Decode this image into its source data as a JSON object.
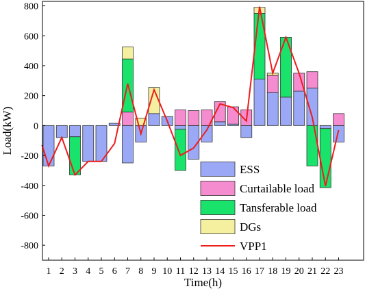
{
  "chart_data": {
    "type": "bar",
    "title": "",
    "xlabel": "Time(h)",
    "ylabel": "Load(kW)",
    "categories": [
      "1",
      "2",
      "3",
      "4",
      "5",
      "6",
      "7",
      "8",
      "9",
      "10",
      "11",
      "12",
      "13",
      "14",
      "15",
      "16",
      "17",
      "18",
      "19",
      "20",
      "21",
      "22",
      "23"
    ],
    "ylim": [
      -900,
      830
    ],
    "yticks": [
      -800,
      -600,
      -400,
      -200,
      0,
      200,
      400,
      600,
      800
    ],
    "grid": false,
    "legend_position": "bottom-right",
    "stacked": true,
    "series": [
      {
        "name": "ESS",
        "color": "#9aa8f5",
        "values": [
          -270,
          -80,
          -75,
          -240,
          -240,
          15,
          -250,
          -110,
          80,
          60,
          -25,
          -225,
          -110,
          25,
          10,
          -80,
          310,
          220,
          190,
          230,
          250,
          -20,
          -110
        ]
      },
      {
        "name": "Curtailable load",
        "color": "#f58ccf",
        "values": [
          0,
          0,
          0,
          0,
          0,
          0,
          90,
          0,
          0,
          0,
          105,
          100,
          105,
          135,
          115,
          105,
          0,
          115,
          0,
          120,
          110,
          0,
          80
        ]
      },
      {
        "name": "Tansferable load",
        "color": "#19e36b",
        "values": [
          0,
          0,
          -255,
          0,
          0,
          0,
          355,
          0,
          0,
          0,
          -275,
          0,
          0,
          0,
          0,
          0,
          440,
          0,
          400,
          0,
          -270,
          -395,
          0
        ]
      },
      {
        "name": "DGs",
        "color": "#f5f0a0",
        "values": [
          0,
          0,
          0,
          0,
          0,
          0,
          80,
          50,
          175,
          0,
          0,
          0,
          0,
          0,
          0,
          0,
          40,
          15,
          0,
          0,
          0,
          0,
          0
        ]
      }
    ],
    "line_series": {
      "name": "VPP1",
      "color": "#ee1c1c",
      "values": [
        -130,
        -270,
        -80,
        -330,
        -240,
        -240,
        -120,
        280,
        -55,
        240,
        30,
        -200,
        -150,
        -30,
        145,
        120,
        30,
        795,
        350,
        590,
        350,
        55,
        -405,
        -30
      ],
      "x": [
        0.5,
        1,
        2,
        3,
        4,
        5,
        6,
        7,
        8,
        9,
        10,
        11,
        12,
        13,
        14,
        15,
        16,
        17,
        18,
        19,
        20,
        21,
        22,
        23
      ]
    }
  }
}
